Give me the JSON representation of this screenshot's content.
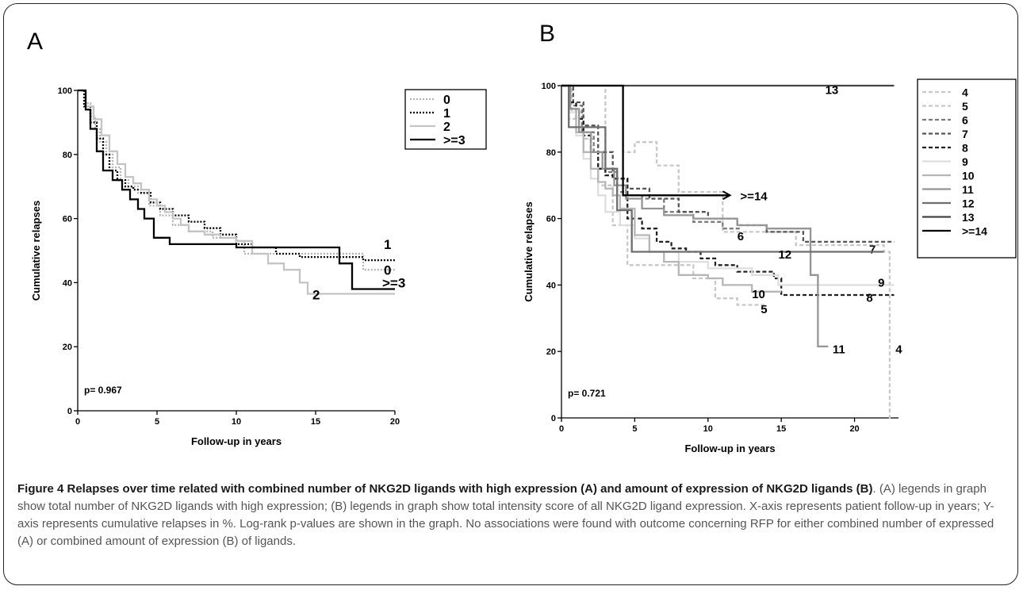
{
  "panel_a_letter": "A",
  "panel_b_letter": "B",
  "caption": {
    "bold": "Figure 4 Relapses over time related with combined number of NKG2D ligands with high expression (A) and amount of expression of NKG2D ligands (B)",
    "text": ". (A) legends in graph show total number of NKG2D ligands with high expression; (B) legends in graph show total intensity score of all NKG2D ligand expression. X-axis represents patient follow-up in years; Y-axis represents cumulative relapses in %. Log-rank p-values are shown in the graph. No associations were found with outcome concerning RFP for either combined number of expressed (A) or combined amount of expression (B) of ligands."
  },
  "chart_data": [
    {
      "type": "line",
      "panel": "A",
      "xlabel": "Follow-up in years",
      "ylabel": "Cumulative relapses",
      "xlim": [
        0,
        20
      ],
      "ylim": [
        0,
        100
      ],
      "xticks": [
        0,
        5,
        10,
        15,
        20
      ],
      "yticks": [
        0,
        20,
        40,
        60,
        80,
        100
      ],
      "annotation": "p= 0.967",
      "legend_position": "top-right",
      "series": [
        {
          "name": "0",
          "color": "#b5b5b5",
          "style": "dotted",
          "x": [
            0,
            0.5,
            0.8,
            1.1,
            1.4,
            1.8,
            2.2,
            2.7,
            3.2,
            3.8,
            4.5,
            5.2,
            6,
            7,
            8.5,
            10,
            10.5,
            18,
            20
          ],
          "y": [
            100,
            96,
            92,
            88,
            84,
            80,
            76,
            72,
            70,
            68,
            64,
            61,
            58,
            56,
            54,
            53,
            49,
            44,
            44
          ],
          "end_label": "0",
          "end_label_pos": [
            19.3,
            42.5
          ]
        },
        {
          "name": "1",
          "color": "#000000",
          "style": "dotted",
          "x": [
            0,
            0.4,
            0.8,
            1.2,
            1.6,
            2,
            2.5,
            3,
            3.5,
            4,
            4.6,
            5.2,
            6,
            7,
            8,
            9,
            10,
            11,
            12.5,
            14,
            16,
            18,
            20
          ],
          "y": [
            100,
            95,
            90,
            85,
            80,
            75,
            72,
            70,
            69,
            68,
            65,
            63,
            61,
            59,
            57,
            55,
            52,
            51,
            49,
            48,
            48,
            47,
            47
          ],
          "end_label": "1",
          "end_label_pos": [
            19.3,
            50.5
          ]
        },
        {
          "name": "2",
          "color": "#c4c4c4",
          "style": "solid",
          "x": [
            0,
            0.5,
            1,
            1.5,
            2,
            2.5,
            3,
            3.5,
            4,
            4.5,
            5,
            5.5,
            6,
            6.5,
            7,
            8,
            9,
            10,
            11,
            12,
            13,
            14,
            14.5,
            20
          ],
          "y": [
            100,
            95,
            91,
            86,
            81,
            77,
            73,
            71,
            69,
            66,
            64,
            62,
            60,
            58,
            56,
            55,
            54,
            53,
            49,
            46,
            44,
            40,
            36.5,
            36.5
          ],
          "end_label": "2",
          "end_label_pos": [
            14.8,
            34.8
          ]
        },
        {
          "name": ">=3",
          "color": "#000000",
          "style": "solid",
          "x": [
            0,
            0.5,
            0.8,
            1.2,
            1.6,
            2.2,
            2.8,
            3.3,
            3.8,
            4.2,
            4.8,
            5.8,
            10,
            16.5,
            17.3,
            20
          ],
          "y": [
            100,
            94,
            88,
            81,
            75,
            72,
            69,
            66,
            63,
            60,
            54,
            52,
            51,
            46,
            38,
            38
          ],
          "end_label": ">=3",
          "end_label_pos": [
            19.2,
            38.5
          ]
        }
      ]
    },
    {
      "type": "line",
      "panel": "B",
      "xlabel": "Follow-up in years",
      "ylabel": "Cumulative relapses",
      "xlim": [
        0,
        23
      ],
      "ylim": [
        0,
        100
      ],
      "xticks": [
        0,
        5,
        10,
        15,
        20
      ],
      "yticks": [
        0,
        20,
        40,
        60,
        80,
        100
      ],
      "annotation": "p= 0.721",
      "legend_position": "top-right",
      "series": [
        {
          "name": "4",
          "color": "#c8c8c8",
          "style": "dashed",
          "x": [
            0,
            0.7,
            1.5,
            2.5,
            3,
            3.5,
            4.2,
            5,
            6.5,
            8,
            10.7,
            11,
            16,
            22,
            22.4,
            22.5
          ],
          "y": [
            100,
            92,
            84,
            75,
            100,
            100,
            80,
            83,
            76,
            68,
            68,
            56,
            52,
            50,
            0,
            0
          ],
          "end_label": "4",
          "end_label_pos": [
            22.8,
            19.5
          ]
        },
        {
          "name": "5",
          "color": "#c8c8c8",
          "style": "dashed",
          "x": [
            0,
            0.5,
            1.5,
            2.5,
            3.5,
            4.5,
            5.5,
            7,
            9,
            10.5,
            12,
            14
          ],
          "y": [
            100,
            90,
            80,
            70,
            58,
            46,
            46,
            46,
            42,
            36,
            34,
            34
          ],
          "end_label": "5",
          "end_label_pos": [
            13.6,
            31.5
          ]
        },
        {
          "name": "6",
          "color": "#7c7c7c",
          "style": "dashed",
          "x": [
            0,
            0.6,
            1.4,
            2.2,
            3,
            3.8,
            4.5,
            5.5,
            7,
            9,
            11,
            12.3
          ],
          "y": [
            100,
            94,
            86,
            80,
            74,
            68,
            67,
            66,
            62,
            59,
            57,
            57
          ],
          "end_label": "6",
          "end_label_pos": [
            12,
            53.5
          ]
        },
        {
          "name": "7",
          "color": "#555555",
          "style": "dashed",
          "x": [
            0,
            0.8,
            1.5,
            2.5,
            3.5,
            4.5,
            6,
            8,
            10,
            12,
            14,
            16.5,
            22.7
          ],
          "y": [
            100,
            95,
            88,
            80,
            72,
            69,
            66,
            62,
            60,
            58,
            56,
            53,
            53
          ],
          "end_label": "7",
          "end_label_pos": [
            21,
            49.5
          ]
        },
        {
          "name": "8",
          "color": "#222222",
          "style": "dashed",
          "x": [
            0,
            0.5,
            1,
            1.5,
            2,
            2.5,
            3,
            3.5,
            4.5,
            5.5,
            6.5,
            7.5,
            8.5,
            9.5,
            10.5,
            12,
            14.5,
            15,
            22.7
          ],
          "y": [
            100,
            95,
            90,
            85,
            80,
            75,
            73,
            72,
            60,
            57,
            53,
            51,
            50,
            48,
            46,
            44,
            42,
            37,
            37
          ],
          "end_label": "8",
          "end_label_pos": [
            20.8,
            35
          ]
        },
        {
          "name": "9",
          "color": "#dedede",
          "style": "solid",
          "x": [
            0,
            0.5,
            1,
            1.5,
            2,
            2.5,
            3,
            4,
            5,
            6,
            8,
            10,
            13,
            14.8,
            22.7
          ],
          "y": [
            100,
            92,
            85,
            78,
            72,
            67,
            62,
            58,
            54,
            50,
            47,
            45,
            43,
            40,
            40
          ],
          "end_label": "9",
          "end_label_pos": [
            21.6,
            39.5
          ]
        },
        {
          "name": "10",
          "color": "#b6b6b6",
          "style": "solid",
          "x": [
            0,
            0.5,
            1,
            1.5,
            2,
            2.5,
            3,
            3.5,
            4,
            5,
            6,
            7,
            8,
            10,
            11,
            13,
            15
          ],
          "y": [
            100,
            93,
            86,
            80,
            75,
            71,
            69,
            67,
            63,
            55,
            50,
            47,
            43,
            42,
            40,
            38,
            38
          ],
          "end_label": "10",
          "end_label_pos": [
            13,
            36
          ]
        },
        {
          "name": "11",
          "color": "#959595",
          "style": "solid",
          "x": [
            0,
            0.6,
            1.2,
            2,
            2.8,
            3.6,
            4.4,
            5.5,
            7,
            9,
            12,
            14,
            16.5,
            17,
            17.5,
            18.2
          ],
          "y": [
            100,
            93,
            86,
            80,
            75,
            70,
            66,
            63,
            61,
            60,
            58,
            57,
            57,
            43,
            21.5,
            21.5
          ],
          "end_label": "11",
          "end_label_pos": [
            18.5,
            19.5
          ]
        },
        {
          "name": "12",
          "color": "#6e6e6e",
          "style": "solid",
          "x": [
            0,
            0.5,
            2,
            3,
            3.8,
            4.3,
            4.8,
            5.2,
            22
          ],
          "y": [
            100,
            87.5,
            87.5,
            75,
            62.5,
            62.5,
            50,
            50,
            50
          ],
          "end_label": "12",
          "end_label_pos": [
            14.8,
            48
          ]
        },
        {
          "name": "13",
          "color": "#444444",
          "style": "solid",
          "x": [
            0,
            0.3,
            22.7
          ],
          "y": [
            100,
            100,
            100
          ],
          "end_label": "13",
          "end_label_pos": [
            18,
            97.5
          ]
        },
        {
          "name": ">=14",
          "color": "#000000",
          "style": "solid",
          "x": [
            0,
            3.8,
            4.2,
            4.5,
            11.5
          ],
          "y": [
            100,
            100,
            67,
            67,
            67
          ],
          "end_label": ">=14",
          "end_label_pos": [
            12.2,
            65.5
          ]
        }
      ]
    }
  ]
}
